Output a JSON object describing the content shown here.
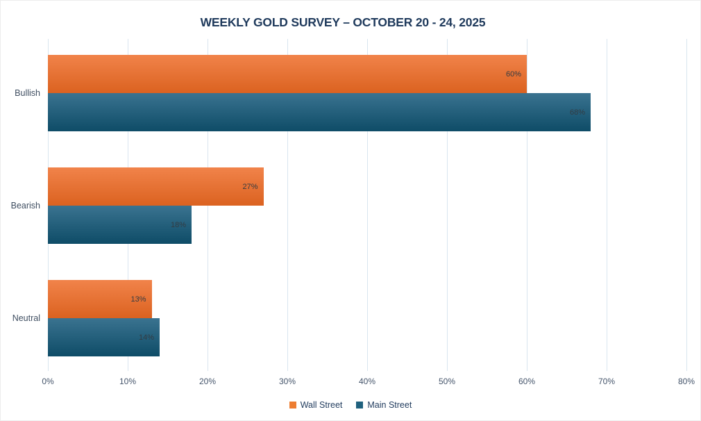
{
  "title": "WEEKLY GOLD SURVEY – OCTOBER 20 - 24, 2025",
  "colors": {
    "title_text": "#1F3A5C",
    "gridline": "#D9E5EF",
    "axis_tick_text": "#44546A",
    "category_text": "#3F4E61",
    "data_label_text": "#333B42",
    "legend_text": "#1F3A5C"
  },
  "chart_data": {
    "type": "bar",
    "orientation": "horizontal",
    "title": "WEEKLY GOLD SURVEY – OCTOBER 20 - 24, 2025",
    "categories": [
      "Bullish",
      "Bearish",
      "Neutral"
    ],
    "series": [
      {
        "name": "Wall Street",
        "values": [
          60,
          27,
          13
        ],
        "swatch_color": "#ED7D31",
        "gradient_top": "#F1834A",
        "gradient_bottom": "#DB6220"
      },
      {
        "name": "Main Street",
        "values": [
          68,
          18,
          14
        ],
        "swatch_color": "#20617E",
        "gradient_top": "#3A7390",
        "gradient_bottom": "#0E4C67"
      }
    ],
    "value_suffix": "%",
    "data_labels": [
      "60%",
      "68%",
      "27%",
      "18%",
      "13%",
      "14%"
    ],
    "xlim": [
      0,
      80
    ],
    "x_ticks": [
      "0%",
      "10%",
      "20%",
      "30%",
      "40%",
      "50%",
      "60%",
      "70%",
      "80%"
    ],
    "grid": true,
    "legend_position": "bottom"
  }
}
